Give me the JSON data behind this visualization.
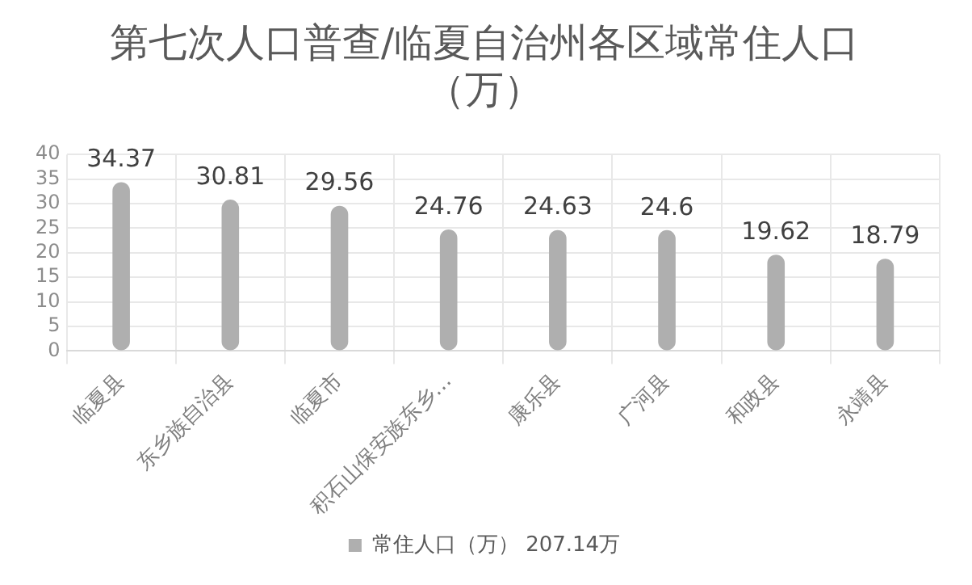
{
  "chart_data": {
    "type": "bar",
    "title": "第七次人口普查/临夏自治州各区域常住人口（万）",
    "categories": [
      "临夏县",
      "东乡族自治县",
      "临夏市",
      "积石山保安族东乡…",
      "康乐县",
      "广河县",
      "和政县",
      "永靖县"
    ],
    "series": [
      {
        "name": "常住人口（万） 207.14万",
        "color": "#afafaf",
        "values": [
          34.37,
          30.81,
          29.56,
          24.76,
          24.63,
          24.6,
          19.62,
          18.79
        ]
      }
    ],
    "ylim": [
      0,
      40
    ],
    "yticks": [
      0,
      5,
      10,
      15,
      20,
      25,
      30,
      35,
      40
    ],
    "grid": true,
    "legend": "bottom",
    "data_labels": true
  }
}
